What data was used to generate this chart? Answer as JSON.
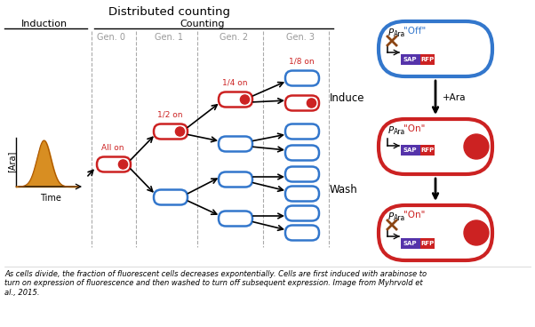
{
  "title": "Distributed counting",
  "induction_label": "Induction",
  "counting_label": "Counting",
  "gen_labels": [
    "Gen. 0",
    "Gen. 1",
    "Gen. 2",
    "Gen. 3"
  ],
  "fraction_labels": [
    "All on",
    "1/2 on",
    "1/4 on",
    "1/8 on"
  ],
  "x_label": "Time",
  "y_label": "[Ara]",
  "caption": "As cells divide, the fraction of fluorescent cells decreases expontentially. Cells are first induced with arabinose to\nturn on expression of fluorescence and then washed to turn off subsequent expression. Image from Myhrvold et\nal., 2015.",
  "cell_blue": "#3377cc",
  "cell_red": "#cc2222",
  "orange": "#d4820a",
  "purple": "#5533aa",
  "rfp_red": "#cc2222",
  "gray_gen": "#999999",
  "bg_color": "#ffffff"
}
